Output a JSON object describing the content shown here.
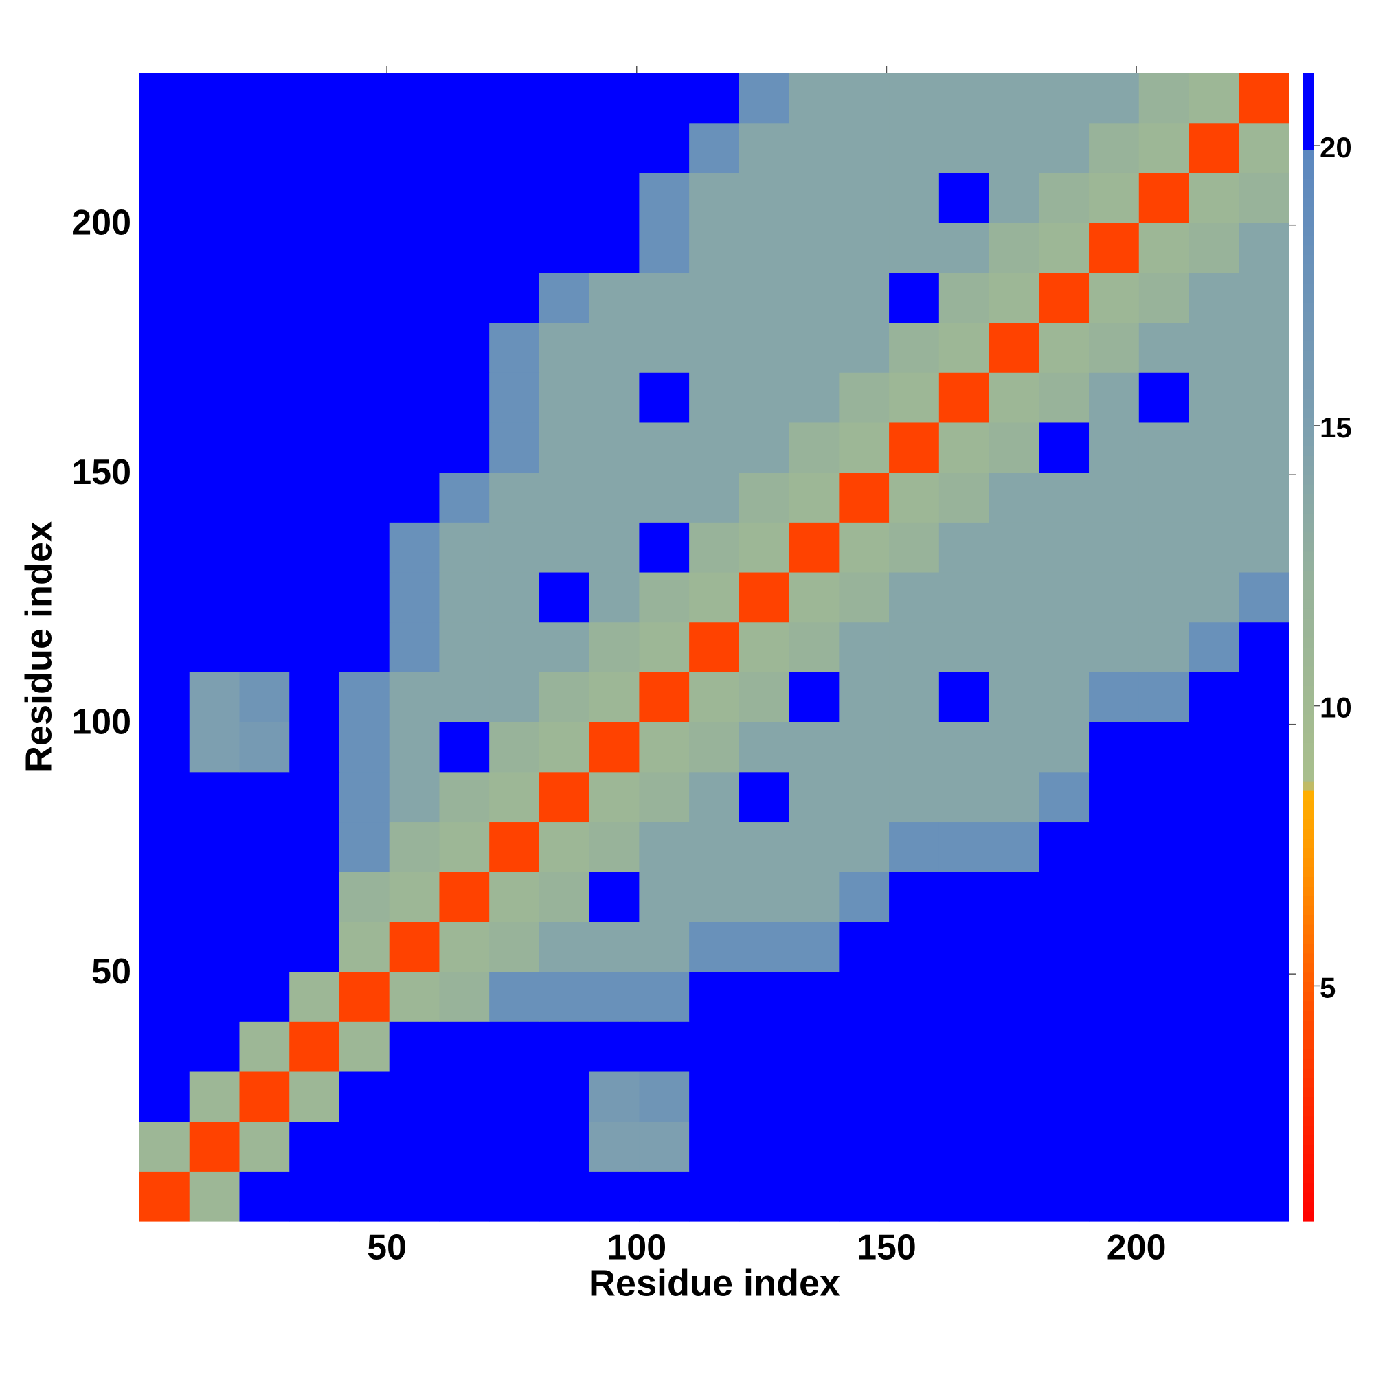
{
  "chart_data": {
    "type": "heatmap",
    "xlabel": "Residue index",
    "ylabel": "Residue index",
    "xbins": [
      0.5,
      10.5,
      20.5,
      30.5,
      40.5,
      50.5,
      60.5,
      70.5,
      80.5,
      90.5,
      100.5,
      110.5,
      120.5,
      130.5,
      140.5,
      150.5,
      160.5,
      170.5,
      180.5,
      190.5,
      200.5,
      210.5,
      220.5,
      230.5
    ],
    "ybins": [
      0.5,
      10.5,
      20.5,
      30.5,
      40.5,
      50.5,
      60.5,
      70.5,
      80.5,
      90.5,
      100.5,
      110.5,
      120.5,
      130.5,
      140.5,
      150.5,
      160.5,
      170.5,
      180.5,
      190.5,
      200.5,
      210.5,
      220.5,
      230.5
    ],
    "xlim": [
      0.5,
      230.5
    ],
    "ylim": [
      0.5,
      230.5
    ],
    "xticks": [
      50,
      100,
      150,
      200
    ],
    "yticks": [
      50,
      100,
      150,
      200
    ],
    "values": [
      [
        4,
        11,
        21,
        21,
        21,
        21,
        21,
        21,
        21,
        21,
        21,
        21,
        21,
        21,
        21,
        21,
        21,
        21,
        21,
        21,
        21,
        21,
        21
      ],
      [
        11,
        4,
        11,
        21,
        21,
        21,
        21,
        21,
        21,
        15,
        15,
        21,
        21,
        21,
        21,
        21,
        21,
        21,
        21,
        21,
        21,
        21,
        21
      ],
      [
        21,
        11,
        4,
        11,
        21,
        21,
        21,
        21,
        21,
        16,
        17,
        21,
        21,
        21,
        21,
        21,
        21,
        21,
        21,
        21,
        21,
        21,
        21
      ],
      [
        21,
        21,
        11,
        4,
        11,
        21,
        21,
        21,
        21,
        21,
        21,
        21,
        21,
        21,
        21,
        21,
        21,
        21,
        21,
        21,
        21,
        21,
        21
      ],
      [
        21,
        21,
        21,
        11,
        4,
        11,
        12,
        18,
        18,
        18,
        18,
        21,
        21,
        21,
        21,
        21,
        21,
        21,
        21,
        21,
        21,
        21,
        21
      ],
      [
        21,
        21,
        21,
        21,
        11,
        4,
        11,
        12,
        14,
        14,
        14,
        18,
        18,
        18,
        21,
        21,
        21,
        21,
        21,
        21,
        21,
        21,
        21
      ],
      [
        21,
        21,
        21,
        21,
        12,
        11,
        4,
        11,
        12,
        21,
        14,
        14,
        14,
        14,
        18,
        21,
        21,
        21,
        21,
        21,
        21,
        21,
        21
      ],
      [
        21,
        21,
        21,
        21,
        18,
        12,
        11,
        4,
        11,
        12,
        14,
        14,
        14,
        14,
        14,
        18,
        18,
        18,
        21,
        21,
        21,
        21,
        21
      ],
      [
        21,
        21,
        21,
        21,
        18,
        14,
        12,
        11,
        4,
        11,
        12,
        14,
        21,
        14,
        14,
        14,
        14,
        14,
        18,
        21,
        21,
        21,
        21
      ],
      [
        21,
        15,
        16,
        21,
        18,
        14,
        21,
        12,
        11,
        4,
        11,
        12,
        14,
        14,
        14,
        14,
        14,
        14,
        14,
        21,
        21,
        21,
        21
      ],
      [
        21,
        15,
        17,
        21,
        18,
        14,
        14,
        14,
        12,
        11,
        4,
        11,
        12,
        21,
        14,
        14,
        21,
        14,
        14,
        18,
        18,
        21,
        21
      ],
      [
        21,
        21,
        21,
        21,
        21,
        18,
        14,
        14,
        14,
        12,
        11,
        4,
        11,
        12,
        14,
        14,
        14,
        14,
        14,
        14,
        14,
        18,
        21
      ],
      [
        21,
        21,
        21,
        21,
        21,
        18,
        14,
        14,
        21,
        14,
        12,
        11,
        4,
        11,
        12,
        14,
        14,
        14,
        14,
        14,
        14,
        14,
        18
      ],
      [
        21,
        21,
        21,
        21,
        21,
        18,
        14,
        14,
        14,
        14,
        21,
        12,
        11,
        4,
        11,
        12,
        14,
        14,
        14,
        14,
        14,
        14,
        14
      ],
      [
        21,
        21,
        21,
        21,
        21,
        21,
        18,
        14,
        14,
        14,
        14,
        14,
        12,
        11,
        4,
        11,
        12,
        14,
        14,
        14,
        14,
        14,
        14
      ],
      [
        21,
        21,
        21,
        21,
        21,
        21,
        21,
        18,
        14,
        14,
        14,
        14,
        14,
        12,
        11,
        4,
        11,
        12,
        21,
        14,
        14,
        14,
        14
      ],
      [
        21,
        21,
        21,
        21,
        21,
        21,
        21,
        18,
        14,
        14,
        21,
        14,
        14,
        14,
        12,
        11,
        4,
        11,
        12,
        14,
        21,
        14,
        14
      ],
      [
        21,
        21,
        21,
        21,
        21,
        21,
        21,
        18,
        14,
        14,
        14,
        14,
        14,
        14,
        14,
        12,
        11,
        4,
        11,
        12,
        14,
        14,
        14
      ],
      [
        21,
        21,
        21,
        21,
        21,
        21,
        21,
        21,
        18,
        14,
        14,
        14,
        14,
        14,
        14,
        21,
        12,
        11,
        4,
        11,
        12,
        14,
        14
      ],
      [
        21,
        21,
        21,
        21,
        21,
        21,
        21,
        21,
        21,
        21,
        18,
        14,
        14,
        14,
        14,
        14,
        14,
        12,
        11,
        4,
        11,
        12,
        14
      ],
      [
        21,
        21,
        21,
        21,
        21,
        21,
        21,
        21,
        21,
        21,
        18,
        14,
        14,
        14,
        14,
        14,
        21,
        14,
        12,
        11,
        4,
        11,
        12
      ],
      [
        21,
        21,
        21,
        21,
        21,
        21,
        21,
        21,
        21,
        21,
        21,
        18,
        14,
        14,
        14,
        14,
        14,
        14,
        14,
        12,
        11,
        4,
        11
      ],
      [
        21,
        21,
        21,
        21,
        21,
        21,
        21,
        21,
        21,
        21,
        21,
        21,
        18,
        14,
        14,
        14,
        14,
        14,
        14,
        14,
        12,
        11,
        4
      ]
    ],
    "colorbar": {
      "lim": [
        0.8,
        21.3
      ],
      "ticks": [
        5,
        10,
        15,
        20
      ],
      "stops": [
        [
          0.8,
          "#ff0000"
        ],
        [
          3,
          "#ff2a00"
        ],
        [
          5,
          "#ff5a00"
        ],
        [
          7,
          "#ff9000"
        ],
        [
          8.5,
          "#ffb000"
        ],
        [
          8.6,
          "#a9bf8c"
        ],
        [
          12,
          "#98b39a"
        ],
        [
          15,
          "#7d9fb0"
        ],
        [
          20,
          "#5b87c0"
        ],
        [
          20.01,
          "#0000ff"
        ],
        [
          21.3,
          "#0000ff"
        ]
      ]
    }
  }
}
